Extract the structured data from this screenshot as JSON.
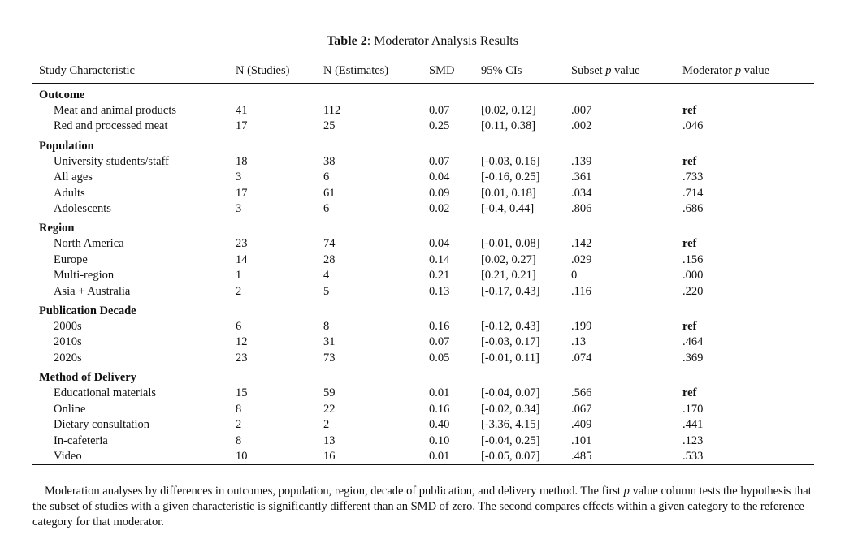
{
  "caption": {
    "label": "Table 2",
    "text": ": Moderator Analysis Results"
  },
  "header": [
    "Study Characteristic",
    "N (Studies)",
    "N (Estimates)",
    "SMD",
    "95% CIs",
    [
      "Subset",
      "p",
      "value"
    ],
    [
      "Moderator",
      "p",
      "value"
    ]
  ],
  "groups": [
    {
      "name": "Outcome",
      "rows": [
        [
          "Meat and animal products",
          "41",
          "112",
          "0.07",
          "[0.02, 0.12]",
          ".007",
          "ref"
        ],
        [
          "Red and processed meat",
          "17",
          "25",
          "0.25",
          "[0.11, 0.38]",
          ".002",
          ".046"
        ]
      ]
    },
    {
      "name": "Population",
      "rows": [
        [
          "University students/staff",
          "18",
          "38",
          "0.07",
          "[-0.03, 0.16]",
          ".139",
          "ref"
        ],
        [
          "All ages",
          "3",
          "6",
          "0.04",
          "[-0.16, 0.25]",
          ".361",
          ".733"
        ],
        [
          "Adults",
          "17",
          "61",
          "0.09",
          "[0.01, 0.18]",
          ".034",
          ".714"
        ],
        [
          "Adolescents",
          "3",
          "6",
          "0.02",
          "[-0.4, 0.44]",
          ".806",
          ".686"
        ]
      ]
    },
    {
      "name": "Region",
      "rows": [
        [
          "North America",
          "23",
          "74",
          "0.04",
          "[-0.01, 0.08]",
          ".142",
          "ref"
        ],
        [
          "Europe",
          "14",
          "28",
          "0.14",
          "[0.02, 0.27]",
          ".029",
          ".156"
        ],
        [
          "Multi-region",
          "1",
          "4",
          "0.21",
          "[0.21, 0.21]",
          "0",
          ".000"
        ],
        [
          "Asia + Australia",
          "2",
          "5",
          "0.13",
          "[-0.17, 0.43]",
          ".116",
          ".220"
        ]
      ]
    },
    {
      "name": "Publication Decade",
      "rows": [
        [
          "2000s",
          "6",
          "8",
          "0.16",
          "[-0.12, 0.43]",
          ".199",
          "ref"
        ],
        [
          "2010s",
          "12",
          "31",
          "0.07",
          "[-0.03, 0.17]",
          ".13",
          ".464"
        ],
        [
          "2020s",
          "23",
          "73",
          "0.05",
          "[-0.01, 0.11]",
          ".074",
          ".369"
        ]
      ]
    },
    {
      "name": "Method of Delivery",
      "rows": [
        [
          "Educational materials",
          "15",
          "59",
          "0.01",
          "[-0.04, 0.07]",
          ".566",
          "ref"
        ],
        [
          "Online",
          "8",
          "22",
          "0.16",
          "[-0.02, 0.34]",
          ".067",
          ".170"
        ],
        [
          "Dietary consultation",
          "2",
          "2",
          "0.40",
          "[-3.36, 4.15]",
          ".409",
          ".441"
        ],
        [
          "In-cafeteria",
          "8",
          "13",
          "0.10",
          "[-0.04, 0.25]",
          ".101",
          ".123"
        ],
        [
          "Video",
          "10",
          "16",
          "0.01",
          "[-0.05, 0.07]",
          ".485",
          ".533"
        ]
      ]
    }
  ],
  "footnote": [
    "Moderation analyses by differences in outcomes, population, region, decade of publication, and delivery method. The first",
    "p",
    "value column tests the hypothesis that the subset of studies with a given characteristic is significantly different than an SMD of zero. The second compares effects within a given category to the reference category for that moderator."
  ]
}
